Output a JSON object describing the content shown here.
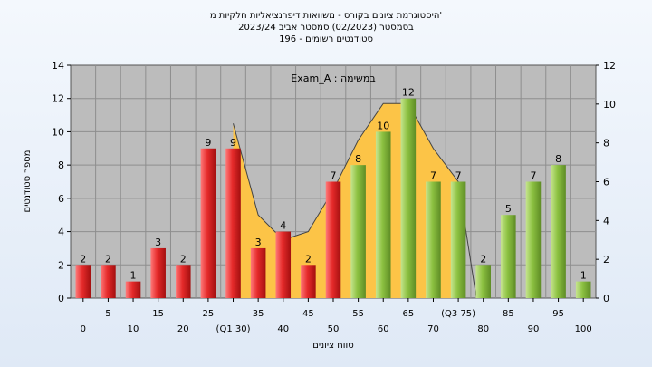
{
  "title_lines": [
    "היסטוגרמת ציונים בקורס - משוואות דיפרנציאליות חלקיות מ'",
    "בסמסטר  (02/2023)  סמסטר אביב 2023/24",
    "סטודנטים רשומים - 196"
  ],
  "chart_data": {
    "type": "bar",
    "title": "",
    "exam_label": "Exam_A : במשימה",
    "xlabel": "טווח ציונים",
    "ylabel": "מספר סטודנטים",
    "ylim": [
      0,
      14
    ],
    "y_ticks": [
      0,
      2,
      4,
      6,
      8,
      10,
      12,
      14
    ],
    "y2lim": [
      0,
      12
    ],
    "y2_ticks": [
      0,
      2,
      4,
      6,
      8,
      10,
      12
    ],
    "categories": [
      "0",
      "5",
      "10",
      "15",
      "20",
      "25",
      "30",
      "35",
      "40",
      "45",
      "50",
      "55",
      "60",
      "65",
      "70",
      "75",
      "80",
      "85",
      "90",
      "95",
      "100"
    ],
    "x_tick_labels": [
      "0",
      "5",
      "10",
      "15",
      "20",
      "25",
      "(Q1 30)",
      "35",
      "40",
      "45",
      "50",
      "55",
      "60",
      "65",
      "70",
      "(Q3 75)",
      "80",
      "85",
      "90",
      "95",
      "100"
    ],
    "values": [
      2,
      2,
      1,
      3,
      2,
      9,
      9,
      3,
      4,
      2,
      7,
      8,
      10,
      12,
      7,
      7,
      2,
      5,
      7,
      8,
      1
    ],
    "bar_colors": [
      "red",
      "red",
      "red",
      "red",
      "red",
      "red",
      "red",
      "red",
      "red",
      "red",
      "red",
      "green",
      "green",
      "green",
      "green",
      "green",
      "green",
      "green",
      "green",
      "green",
      "green"
    ],
    "iqr_band": {
      "x": [
        30,
        35,
        40,
        45,
        50,
        55,
        60,
        65,
        70,
        75
      ],
      "y": [
        10.5,
        5,
        3.5,
        4,
        6.5,
        9.5,
        11.7,
        11.7,
        9,
        7
      ]
    },
    "grid": true,
    "legend": "none",
    "colors": {
      "plot_bg": "#bcbcbc",
      "red_bar": "#e23636",
      "green_bar": "#92c548",
      "band": "#fcc447",
      "gridline": "#8e8e8e"
    }
  }
}
